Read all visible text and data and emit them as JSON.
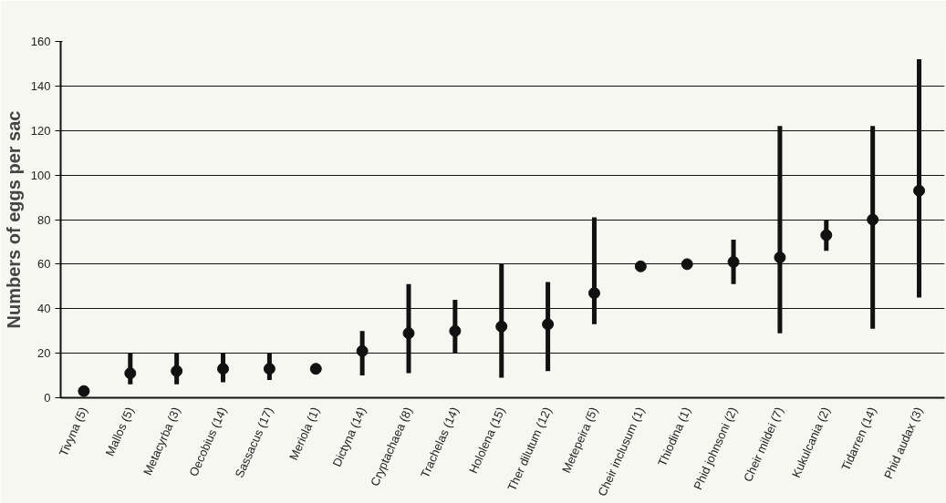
{
  "chart_data": {
    "type": "scatter",
    "ylabel": "Numbers of eggs per sac",
    "categories": [
      "Tivyna (5)",
      "Mallos (5)",
      "Metacyrba (3)",
      "Oecobius (14)",
      "Sassacus (17)",
      "Meriola (1)",
      "Dictyna (14)",
      "Cryptachaea (8)",
      "Trachelas (14)",
      "Hololena (15)",
      "Ther dilutum (12)",
      "Metepeira (5)",
      "Cheir inclusum (1)",
      "Thiodina (1)",
      "Phid johnsoni (2)",
      "Cheir mildei (7)",
      "Kukulcania (2)",
      "Tidarren (14)",
      "Phid audax (3)"
    ],
    "series": [
      {
        "color": "#111111",
        "values": [
          3,
          11,
          12,
          13,
          13,
          13,
          21,
          29,
          30,
          32,
          33,
          47,
          59,
          60,
          61,
          63,
          73,
          80,
          93
        ],
        "errors": [
          null,
          [
            6,
            20
          ],
          [
            6,
            20
          ],
          [
            7,
            20
          ],
          [
            8,
            20
          ],
          null,
          [
            10,
            30
          ],
          [
            11,
            51
          ],
          [
            20,
            44
          ],
          [
            9,
            60
          ],
          [
            12,
            52
          ],
          [
            33,
            81
          ],
          null,
          null,
          [
            51,
            71
          ],
          [
            29,
            122
          ],
          [
            66,
            80
          ],
          [
            31,
            122
          ],
          [
            45,
            152
          ]
        ]
      }
    ],
    "ylim": [
      0,
      160
    ],
    "yticks": [
      0,
      20,
      40,
      60,
      80,
      100,
      120,
      140,
      160
    ],
    "grid": "y",
    "marker": "circle",
    "line_style": "none"
  }
}
